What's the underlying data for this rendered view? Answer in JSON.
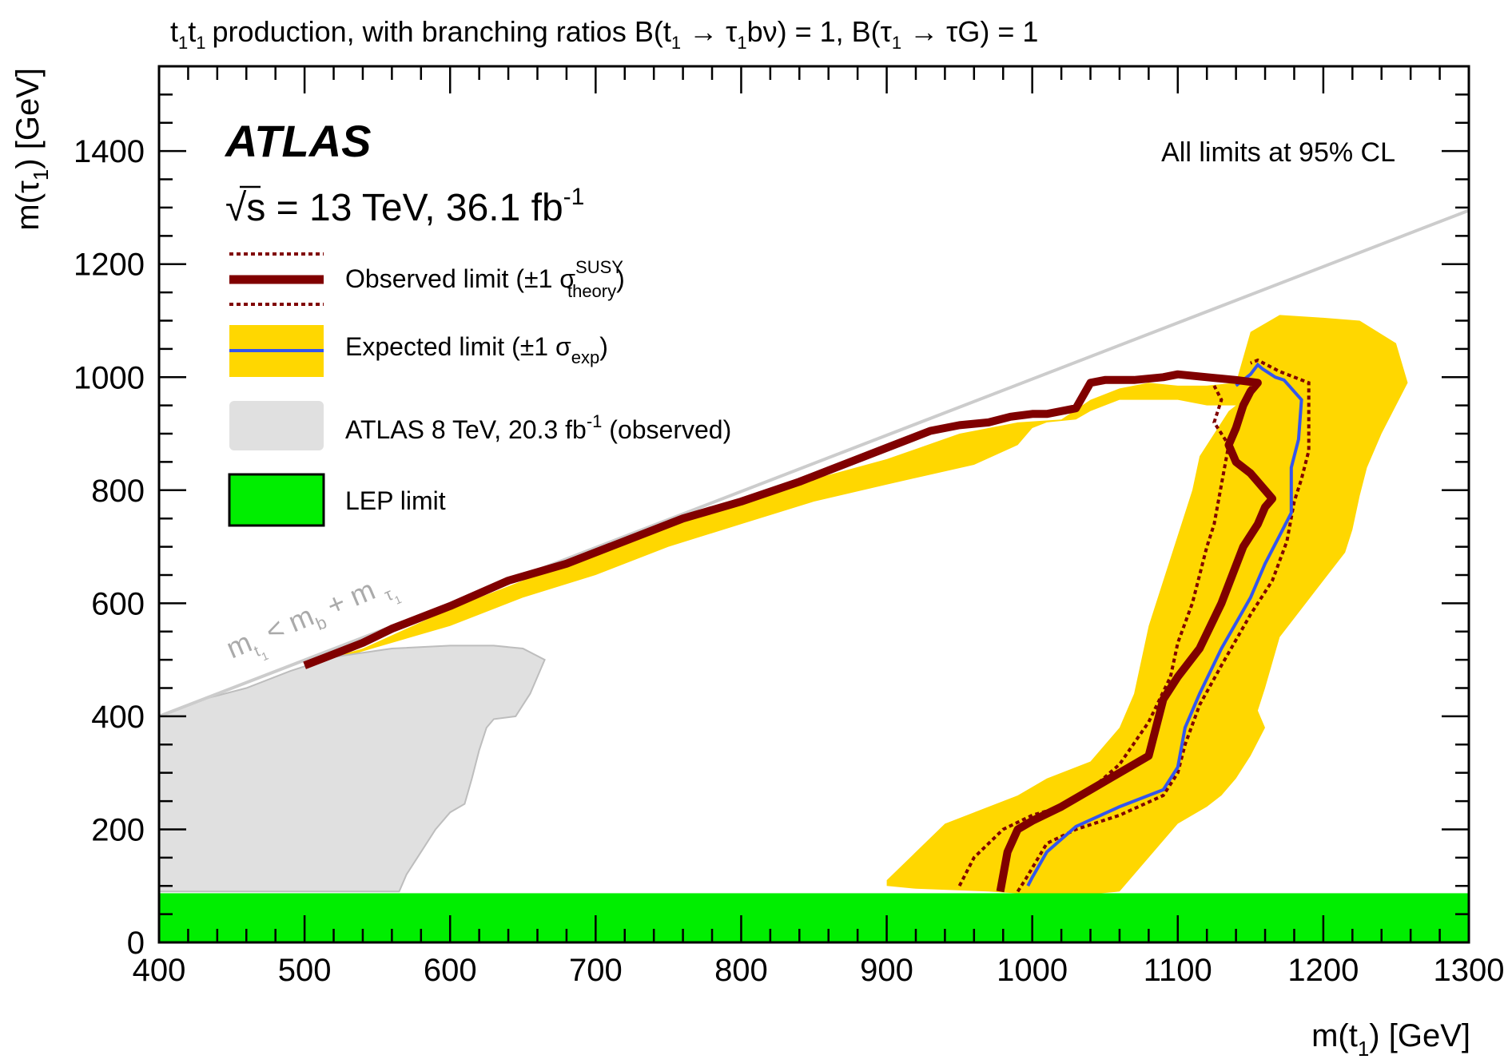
{
  "chart_data": {
    "type": "exclusion-contour",
    "title": {
      "prefix": "t",
      "text": "production, with branching ratios B(",
      "mid1": "t",
      "arrow": " → ",
      "tau": "τ",
      "text2": "bν) = 1, B(",
      "text3": "τG) = 1",
      "sub1": "1"
    },
    "xlabel": {
      "main": "m(t",
      "sub": "1",
      "unit": ") [GeV]"
    },
    "ylabel": {
      "main": "m(τ",
      "sub": "1",
      "unit": ") [GeV]"
    },
    "xlim": [
      400,
      1300
    ],
    "ylim": [
      0,
      1550
    ],
    "xticks": [
      400,
      500,
      600,
      700,
      800,
      900,
      1000,
      1100,
      1200,
      1300
    ],
    "yticks": [
      0,
      200,
      400,
      600,
      800,
      1000,
      1200,
      1400
    ],
    "experiment": "ATLAS",
    "energy": {
      "sqrt": "s",
      "text": " = 13 TeV, 36.1 fb",
      "sup": "-1"
    },
    "cl_note": "All limits at 95% CL",
    "kinematic_label": {
      "m": "m",
      "t": "t",
      "t_sub": "1",
      "rest": " < m",
      "b": "b",
      "plus": " + m ",
      "tau": "τ",
      "tau_sub": "1"
    },
    "legend": {
      "observed": {
        "text": "Observed limit (±1 σ",
        "sup": "SUSY",
        "sub": "theory",
        "close": ")"
      },
      "expected": {
        "text": "Expected limit (±1 σ",
        "sub": "exp",
        "close": ")"
      },
      "atlas8": {
        "text": "ATLAS  8 TeV, 20.3 fb",
        "sup": "-1",
        "close": " (observed)"
      },
      "lep": {
        "text": "LEP limit"
      }
    },
    "colors": {
      "observed": "#800000",
      "expected": "#3355ee",
      "band": "#ffd700",
      "atlas8_fill": "#e0e0e0",
      "atlas8_line": "#bdbdbd",
      "lep": "#00ee00",
      "diagonal": "#cccccc"
    },
    "lep_limit": 87,
    "diagonal": {
      "x": [
        400,
        1300
      ],
      "y": [
        400,
        1295
      ]
    },
    "atlas8": {
      "x": [
        400,
        410,
        430,
        460,
        490,
        520,
        560,
        600,
        630,
        650,
        665,
        660,
        655,
        650,
        645,
        630,
        625,
        620,
        615,
        610,
        600,
        590,
        580,
        570,
        565,
        400
      ],
      "y": [
        400,
        410,
        430,
        450,
        480,
        505,
        520,
        525,
        525,
        520,
        500,
        470,
        440,
        420,
        400,
        395,
        380,
        340,
        290,
        245,
        230,
        200,
        160,
        120,
        90,
        90
      ]
    },
    "band": {
      "x": [
        500,
        540,
        600,
        650,
        700,
        750,
        800,
        850,
        900,
        950,
        990,
        1020,
        1040,
        1060,
        1080,
        1100,
        1120,
        1140,
        1150,
        1170,
        1200,
        1225,
        1250,
        1258,
        1250,
        1240,
        1230,
        1225,
        1220,
        1215,
        1200,
        1185,
        1170,
        1160,
        1155,
        1160,
        1150,
        1140,
        1130,
        1120,
        1100,
        1060,
        1040,
        1000,
        970,
        920,
        900,
        900,
        940,
        960,
        990,
        1010,
        1040,
        1060,
        1070,
        1080,
        1100,
        1110,
        1115,
        1125,
        1135,
        1140,
        1120,
        1100,
        1060,
        1040,
        1030,
        1010,
        1000,
        990,
        960,
        900,
        850,
        800,
        750,
        700,
        650,
        600,
        540,
        510,
        500
      ],
      "y": [
        490,
        520,
        590,
        640,
        690,
        740,
        780,
        820,
        855,
        900,
        920,
        925,
        960,
        980,
        990,
        985,
        985,
        990,
        1080,
        1110,
        1105,
        1100,
        1060,
        990,
        950,
        900,
        840,
        790,
        730,
        690,
        640,
        590,
        540,
        450,
        410,
        380,
        330,
        290,
        260,
        240,
        210,
        90,
        85,
        85,
        90,
        95,
        100,
        110,
        210,
        230,
        260,
        290,
        320,
        380,
        440,
        560,
        720,
        800,
        860,
        900,
        940,
        950,
        950,
        960,
        960,
        940,
        925,
        920,
        910,
        880,
        845,
        810,
        780,
        740,
        700,
        650,
        610,
        560,
        515,
        490,
        490
      ]
    },
    "expected": {
      "x": [
        997,
        1000,
        1010,
        1030,
        1060,
        1090,
        1100,
        1105,
        1115,
        1130,
        1150,
        1160,
        1170,
        1178,
        1178,
        1183,
        1185,
        1173,
        1167,
        1158,
        1155,
        1150,
        1140
      ],
      "y": [
        100,
        115,
        160,
        205,
        240,
        270,
        310,
        380,
        440,
        520,
        610,
        670,
        720,
        760,
        840,
        890,
        960,
        995,
        1000,
        1015,
        1022,
        1005,
        985
      ]
    },
    "observed": {
      "x": [
        500,
        520,
        540,
        560,
        600,
        640,
        680,
        720,
        760,
        800,
        840,
        860,
        880,
        900,
        930,
        950,
        970,
        985,
        1000,
        1010,
        1030,
        1040,
        1050,
        1070,
        1090,
        1100,
        1120,
        1140,
        1155,
        1150,
        1145,
        1140,
        1135,
        1140,
        1150,
        1160,
        1165,
        1160,
        1155,
        1145,
        1130,
        1115,
        1100,
        1090,
        1085,
        1080,
        1060,
        1040,
        1020,
        1000,
        990,
        983,
        978
      ],
      "y": [
        490,
        510,
        530,
        555,
        595,
        640,
        670,
        710,
        750,
        780,
        815,
        835,
        855,
        875,
        905,
        915,
        920,
        930,
        935,
        935,
        945,
        990,
        995,
        995,
        1000,
        1005,
        1000,
        995,
        990,
        975,
        950,
        910,
        880,
        850,
        830,
        800,
        785,
        770,
        740,
        700,
        600,
        520,
        470,
        430,
        380,
        330,
        300,
        270,
        240,
        215,
        200,
        160,
        90
      ]
    },
    "obs_minus": {
      "x": [
        950,
        960,
        980,
        1000,
        1020,
        1040,
        1060,
        1080,
        1095,
        1100,
        1110,
        1120,
        1125,
        1130,
        1135,
        1130,
        1125,
        1130,
        1125
      ],
      "y": [
        100,
        150,
        200,
        225,
        240,
        270,
        315,
        390,
        470,
        530,
        600,
        700,
        740,
        810,
        880,
        900,
        920,
        960,
        985
      ]
    },
    "obs_plus": {
      "x": [
        990,
        995,
        1010,
        1030,
        1060,
        1090,
        1100,
        1105,
        1115,
        1130,
        1150,
        1165,
        1175,
        1180,
        1185,
        1190,
        1190,
        1170,
        1155,
        1150
      ],
      "y": [
        90,
        110,
        175,
        200,
        225,
        260,
        300,
        350,
        420,
        490,
        580,
        640,
        710,
        780,
        820,
        870,
        990,
        1010,
        1030,
        1025
      ]
    }
  }
}
